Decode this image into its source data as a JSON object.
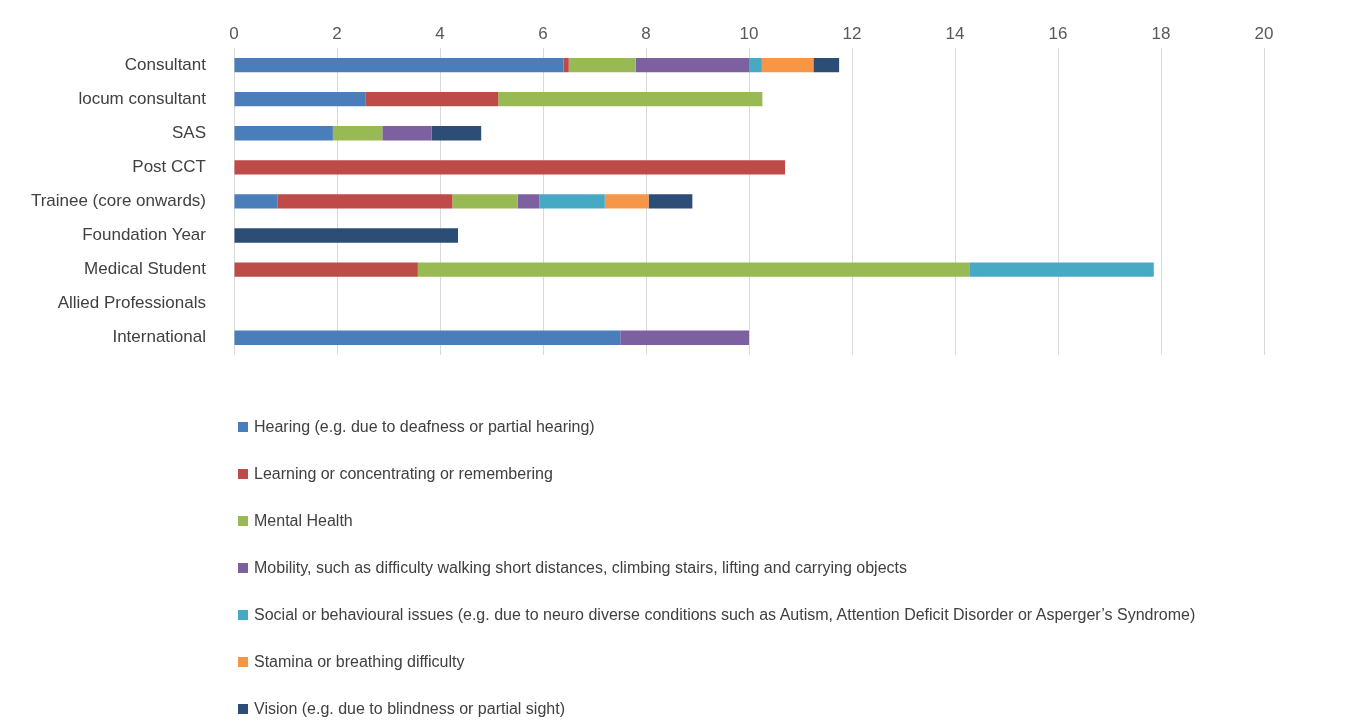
{
  "chart_data": {
    "type": "bar",
    "orientation": "horizontal",
    "stacked": true,
    "categories": [
      "Consultant",
      "locum consultant",
      "SAS",
      "Post CCT",
      "Trainee (core onwards)",
      "Foundation Year",
      "Medical Student",
      "Allied Professionals",
      "International"
    ],
    "series": [
      {
        "name": "Hearing (e.g. due to deafness or partial hearing)",
        "color": "#4a7ebb",
        "values": [
          6.4,
          2.56,
          1.92,
          null,
          0.85,
          null,
          null,
          null,
          7.5
        ]
      },
      {
        "name": "Learning or concentrating or remembering",
        "color": "#be4b48",
        "values": [
          0.1,
          2.57,
          null,
          10.7,
          3.39,
          null,
          3.57,
          null,
          null
        ]
      },
      {
        "name": "Mental Health",
        "color": "#98b954",
        "values": [
          1.3,
          5.13,
          0.96,
          null,
          1.27,
          null,
          10.72,
          null,
          null
        ]
      },
      {
        "name": "Mobility, such as difficulty walking short distances, climbing stairs, lifting and carrying objects",
        "color": "#7d60a0",
        "values": [
          2.2,
          null,
          0.96,
          null,
          0.42,
          null,
          null,
          null,
          2.5
        ]
      },
      {
        "name": "Social or behavioural issues (e.g. due to neuro diverse conditions such as Autism, Attention Deficit Disorder or Asperger’s Syndrome)",
        "color": "#46aac5",
        "values": [
          0.25,
          null,
          null,
          null,
          1.27,
          null,
          3.57,
          null,
          null
        ]
      },
      {
        "name": "Stamina or breathing difficulty",
        "color": "#f79646",
        "values": [
          1.0,
          null,
          null,
          null,
          0.85,
          null,
          null,
          null,
          null
        ]
      },
      {
        "name": "Vision (e.g. due to blindness or partial sight)",
        "color": "#2c4d75",
        "values": [
          0.5,
          null,
          0.96,
          null,
          0.85,
          4.35,
          null,
          null,
          null
        ]
      }
    ],
    "xlim": [
      0,
      20
    ],
    "xticks": [
      0,
      2,
      4,
      6,
      8,
      10,
      12,
      14,
      16,
      18,
      20
    ],
    "grid": "x",
    "legend": "bottom"
  }
}
